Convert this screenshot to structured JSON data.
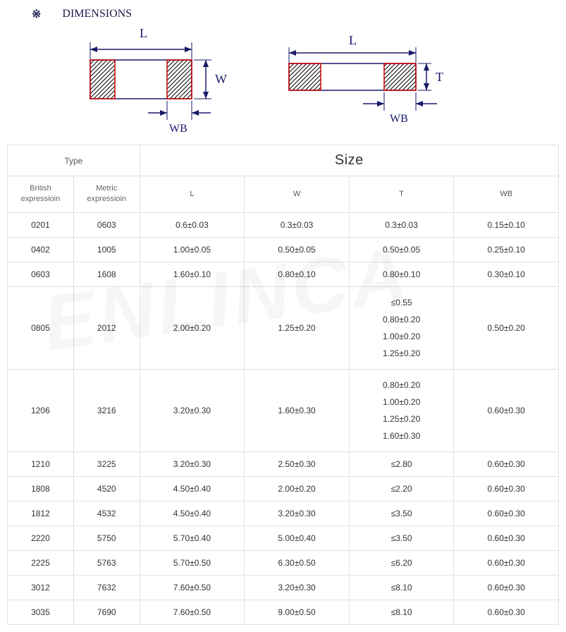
{
  "header": {
    "symbol": "※",
    "title": "DIMENSIONS"
  },
  "diagram": {
    "label_L": "L",
    "label_W": "W",
    "label_T": "T",
    "label_WB": "WB",
    "line_color": "#1a1a6b",
    "hatch_color": "#000000",
    "box_stroke": "#cc0000"
  },
  "table": {
    "type_header": "Type",
    "size_header": "Size",
    "col_british": "British\nexpressioin",
    "col_metric": "Metric\nexpressioin",
    "col_L": "L",
    "col_W": "W",
    "col_T": "T",
    "col_WB": "WB",
    "rows": [
      {
        "british": "0201",
        "metric": "0603",
        "L": "0.6±0.03",
        "W": "0.3±0.03",
        "T": "0.3±0.03",
        "WB": "0.15±0.10"
      },
      {
        "british": "0402",
        "metric": "1005",
        "L": "1.00±0.05",
        "W": "0.50±0.05",
        "T": "0.50±0.05",
        "WB": "0.25±0.10"
      },
      {
        "british": "0603",
        "metric": "1608",
        "L": "1.60±0.10",
        "W": "0.80±0.10",
        "T": "0.80±0.10",
        "WB": "0.30±0.10"
      },
      {
        "british": "0805",
        "metric": "2012",
        "L": "2.00±0.20",
        "W": "1.25±0.20",
        "T": "≤0.55\n0.80±0.20\n1.00±0.20\n1.25±0.20",
        "WB": "0.50±0.20"
      },
      {
        "british": "1206",
        "metric": "3216",
        "L": "3.20±0.30",
        "W": "1.60±0.30",
        "T": "0.80±0.20\n1.00±0.20\n1.25±0.20\n1.60±0.30",
        "WB": "0.60±0.30"
      },
      {
        "british": "1210",
        "metric": "3225",
        "L": "3.20±0.30",
        "W": "2.50±0.30",
        "T": "≤2.80",
        "WB": "0.60±0.30"
      },
      {
        "british": "1808",
        "metric": "4520",
        "L": "4.50±0.40",
        "W": "2.00±0.20",
        "T": "≤2.20",
        "WB": "0.60±0.30"
      },
      {
        "british": "1812",
        "metric": "4532",
        "L": "4.50±0.40",
        "W": "3.20±0.30",
        "T": "≤3.50",
        "WB": "0.60±0.30"
      },
      {
        "british": "2220",
        "metric": "5750",
        "L": "5.70±0.40",
        "W": "5.00±0.40",
        "T": "≤3.50",
        "WB": "0.60±0.30"
      },
      {
        "british": "2225",
        "metric": "5763",
        "L": "5.70±0.50",
        "W": "6.30±0.50",
        "T": "≤6.20",
        "WB": "0.60±0.30"
      },
      {
        "british": "3012",
        "metric": "7632",
        "L": "7.60±0.50",
        "W": "3.20±0.30",
        "T": "≤8.10",
        "WB": "0.60±0.30"
      },
      {
        "british": "3035",
        "metric": "7690",
        "L": "7.60±0.50",
        "W": "9.00±0.50",
        "T": "≤8.10",
        "WB": "0.60±0.30"
      }
    ]
  },
  "watermark": "ENLINCA"
}
